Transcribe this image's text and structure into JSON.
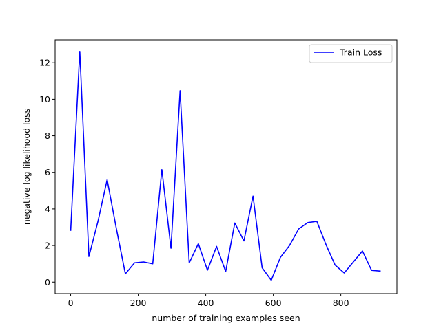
{
  "chart_data": {
    "type": "line",
    "title": "",
    "xlabel": "number of training examples seen",
    "ylabel": "negative log likelihood loss",
    "xlim": [
      -46,
      966
    ],
    "ylim": [
      -0.63,
      13.25
    ],
    "xticks": [
      0,
      200,
      400,
      600,
      800
    ],
    "yticks": [
      0,
      2,
      4,
      6,
      8,
      10,
      12
    ],
    "grid": false,
    "legend_position": "top-right",
    "series": [
      {
        "name": "Train Loss",
        "color": "#0000ff",
        "x": [
          0,
          27,
          54,
          81,
          108,
          135,
          162,
          189,
          216,
          243,
          270,
          297,
          324,
          351,
          378,
          405,
          432,
          459,
          486,
          513,
          540,
          567,
          594,
          621,
          648,
          675,
          702,
          729,
          756,
          783,
          810,
          837,
          864,
          891,
          918
        ],
        "y": [
          2.8,
          12.62,
          1.4,
          3.33,
          5.6,
          2.95,
          0.45,
          1.05,
          1.1,
          1.0,
          6.15,
          1.85,
          10.47,
          1.05,
          2.1,
          0.65,
          1.95,
          0.58,
          3.23,
          2.25,
          4.7,
          0.78,
          0.1,
          1.35,
          2.0,
          2.9,
          3.25,
          3.32,
          2.05,
          0.93,
          0.5,
          1.1,
          1.7,
          0.64,
          0.6
        ]
      }
    ]
  }
}
